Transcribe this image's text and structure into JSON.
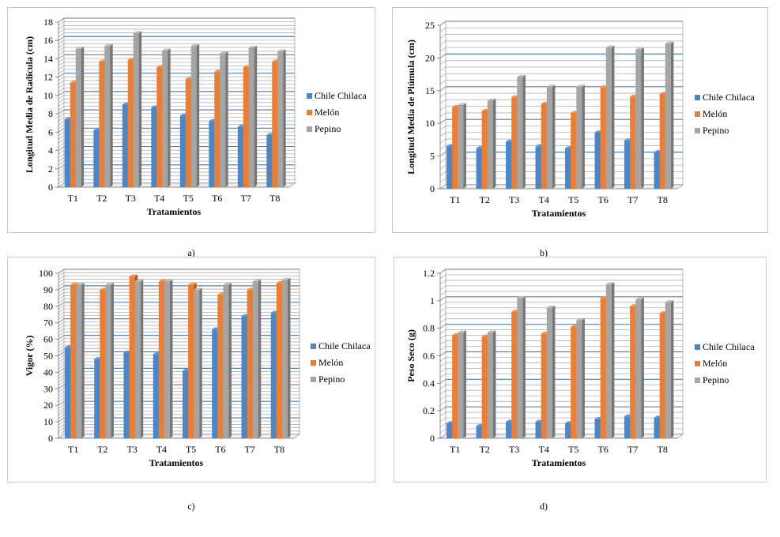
{
  "colors": {
    "chile": "#4a86c8",
    "melon": "#ed7d31",
    "pepino": "#a5a5a5",
    "grid_major": "#4f81bd",
    "grid_minor": "#b0b0b0"
  },
  "chart_data": [
    {
      "id": "a",
      "caption": "a)",
      "type": "bar",
      "xlabel": "Tratamientos",
      "ylabel": "Longitud Media de Radícula (cm)",
      "ylim": [
        0,
        18
      ],
      "yticks": [
        0,
        2,
        4,
        6,
        8,
        10,
        12,
        14,
        16,
        18
      ],
      "ytick_labels": [
        "0",
        "2",
        "4",
        "6",
        "8",
        "10",
        "12",
        "14",
        "16",
        "18"
      ],
      "categories": [
        "T1",
        "T2",
        "T3",
        "T4",
        "T5",
        "T6",
        "T7",
        "T8"
      ],
      "series": [
        {
          "name": "Chile Chilaca",
          "values": [
            7.4,
            6.2,
            9.0,
            8.7,
            7.8,
            7.2,
            6.6,
            5.7
          ]
        },
        {
          "name": "Melón",
          "values": [
            11.4,
            13.7,
            13.9,
            13.1,
            11.8,
            12.6,
            13.1,
            13.7
          ]
        },
        {
          "name": "Pepino",
          "values": [
            15.1,
            15.4,
            16.8,
            14.9,
            15.4,
            14.6,
            15.2,
            14.8
          ]
        }
      ]
    },
    {
      "id": "b",
      "caption": "b)",
      "type": "bar",
      "xlabel": "Tratamientos",
      "ylabel": "Longitud Media de Plúmula (cm)",
      "ylim": [
        0,
        25
      ],
      "yticks": [
        0,
        5,
        10,
        15,
        20,
        25
      ],
      "ytick_labels": [
        "0",
        "5",
        "10",
        "15",
        "20",
        "25"
      ],
      "categories": [
        "T1",
        "T2",
        "T3",
        "T4",
        "T5",
        "T6",
        "T7",
        "T8"
      ],
      "series": [
        {
          "name": "Chile Chilaca",
          "values": [
            6.5,
            6.2,
            7.2,
            6.5,
            6.2,
            8.6,
            7.4,
            5.6
          ]
        },
        {
          "name": "Melón",
          "values": [
            12.5,
            11.9,
            14.0,
            13.0,
            11.6,
            15.5,
            14.1,
            14.5
          ]
        },
        {
          "name": "Pepino",
          "values": [
            12.8,
            13.5,
            17.1,
            15.6,
            15.6,
            21.6,
            21.3,
            22.2
          ]
        }
      ]
    },
    {
      "id": "c",
      "caption": "c)",
      "type": "bar",
      "xlabel": "Tratamientos",
      "ylabel": "Vigor (%)",
      "ylim": [
        0,
        100
      ],
      "yticks": [
        0,
        10,
        20,
        30,
        40,
        50,
        60,
        70,
        80,
        90,
        100
      ],
      "ytick_labels": [
        "0",
        "10",
        "20",
        "30",
        "40",
        "50",
        "60",
        "70",
        "80",
        "90",
        "100"
      ],
      "categories": [
        "T1",
        "T2",
        "T3",
        "T4",
        "T5",
        "T6",
        "T7",
        "T8"
      ],
      "series": [
        {
          "name": "Chile Chilaca",
          "values": [
            55,
            48,
            52,
            51,
            41,
            66,
            74,
            76
          ]
        },
        {
          "name": "Melón",
          "values": [
            93,
            90,
            98,
            95,
            93,
            87,
            90,
            94
          ]
        },
        {
          "name": "Pepino",
          "values": [
            93,
            93,
            95,
            95,
            90,
            93,
            95,
            96
          ]
        }
      ]
    },
    {
      "id": "d",
      "caption": "d)",
      "type": "bar",
      "xlabel": "Tratamientos",
      "ylabel": "Peso Seco (g)",
      "ylim": [
        0,
        1.2
      ],
      "yticks": [
        0,
        0.2,
        0.4,
        0.6,
        0.8,
        1,
        1.2
      ],
      "ytick_labels": [
        "0",
        "0.2",
        "0.4",
        "0.6",
        "0.8",
        "1",
        "1.2"
      ],
      "categories": [
        "T1",
        "T2",
        "T3",
        "T4",
        "T5",
        "T6",
        "T7",
        "T8"
      ],
      "series": [
        {
          "name": "Chile Chilaca",
          "values": [
            0.11,
            0.09,
            0.12,
            0.12,
            0.11,
            0.14,
            0.16,
            0.15
          ]
        },
        {
          "name": "Melón",
          "values": [
            0.75,
            0.74,
            0.92,
            0.76,
            0.81,
            1.02,
            0.96,
            0.91
          ]
        },
        {
          "name": "Pepino",
          "values": [
            0.77,
            0.77,
            1.02,
            0.95,
            0.86,
            1.12,
            1.01,
            0.99
          ]
        }
      ]
    }
  ]
}
